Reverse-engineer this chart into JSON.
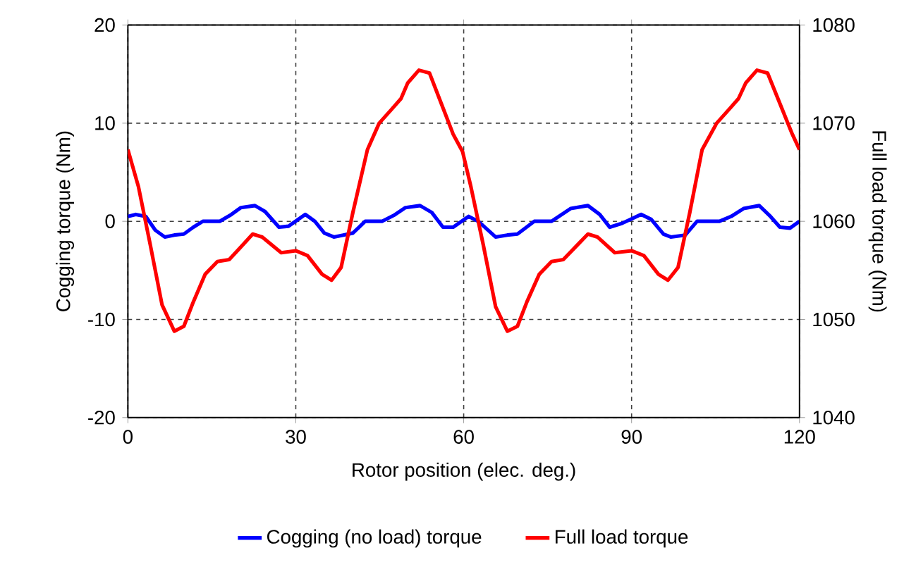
{
  "chart_data": {
    "type": "line",
    "xlabel": "Rotor position (elec. deg.)",
    "ylabel": "Cogging torque  (Nm)",
    "y2label": "Full load torque  (Nm)",
    "xlim": [
      0,
      120
    ],
    "xticks": [
      0,
      30,
      60,
      90,
      120
    ],
    "ylim": [
      -20,
      20
    ],
    "yticks": [
      -20,
      -10,
      0,
      10,
      20
    ],
    "y2lim": [
      1040,
      1080
    ],
    "y2ticks": [
      1040,
      1050,
      1060,
      1070,
      1080
    ],
    "grid": true,
    "legend": "bottom",
    "series": [
      {
        "name": "Cogging (no load) torque",
        "color": "#0000ff",
        "x": [
          0,
          1.4,
          3.2,
          4.9,
          6.6,
          8.3,
          10,
          11.7,
          13.4,
          16.4,
          18.5,
          20.2,
          22.7,
          24.5,
          27,
          28.7,
          31.7,
          33.4,
          35.1,
          36.8,
          38.5,
          40.2,
          42.4,
          45.4,
          47.5,
          49.6,
          52.2,
          54.3,
          56.3,
          58.1,
          60.9,
          62.6,
          65.7,
          67.8,
          69.6,
          72.6,
          75.7,
          79.1,
          82.2,
          84.3,
          86.1,
          88.3,
          91.7,
          93.5,
          95.7,
          97,
          99.6,
          101.7,
          105.7,
          107.8,
          110,
          112.8,
          114.8,
          116.5,
          118.3,
          120
        ],
        "values": [
          0.5,
          0.7,
          0.5,
          -0.9,
          -1.6,
          -1.4,
          -1.3,
          -0.6,
          0,
          0,
          0.7,
          1.4,
          1.6,
          1.0,
          -0.6,
          -0.5,
          0.7,
          0,
          -1.2,
          -1.6,
          -1.4,
          -1.2,
          0,
          0,
          0.6,
          1.4,
          1.6,
          0.9,
          -0.6,
          -0.6,
          0.5,
          0,
          -1.6,
          -1.4,
          -1.3,
          0,
          0,
          1.3,
          1.6,
          0.7,
          -0.6,
          -0.2,
          0.7,
          0.2,
          -1.3,
          -1.6,
          -1.4,
          0,
          0,
          0.5,
          1.3,
          1.6,
          0.5,
          -0.6,
          -0.7,
          0
        ]
      },
      {
        "name": "Full load torque",
        "color": "#ff0000",
        "axis": "y2",
        "x": [
          0,
          1.9,
          4,
          6.1,
          8.3,
          10,
          11.7,
          13.8,
          16,
          18.1,
          20.2,
          22.3,
          24,
          27.4,
          30,
          32.1,
          34.7,
          36.4,
          38.1,
          40.2,
          42.8,
          44.9,
          47.1,
          48.8,
          50,
          52,
          53.9,
          56,
          58.1,
          59.8,
          61.3,
          63.5,
          65.7,
          67.8,
          69.6,
          71.3,
          73.5,
          75.7,
          77.8,
          80,
          82.2,
          83.9,
          87,
          90,
          92.2,
          94.8,
          96.5,
          98.3,
          100.4,
          102.6,
          105.2,
          107.4,
          109.1,
          110.4,
          112.4,
          114.3,
          116.5,
          118.7,
          120
        ],
        "values": [
          1067.3,
          1063.5,
          1057.6,
          1051.5,
          1048.8,
          1049.3,
          1051.8,
          1054.6,
          1055.9,
          1056.1,
          1057.4,
          1058.7,
          1058.4,
          1056.8,
          1057.0,
          1056.5,
          1054.6,
          1054.0,
          1055.3,
          1060.9,
          1067.3,
          1070.0,
          1071.4,
          1072.5,
          1074.1,
          1075.4,
          1075.1,
          1072.0,
          1068.9,
          1067.1,
          1063.5,
          1057.6,
          1051.3,
          1048.8,
          1049.3,
          1051.8,
          1054.6,
          1055.9,
          1056.1,
          1057.4,
          1058.7,
          1058.4,
          1056.8,
          1057.0,
          1056.5,
          1054.6,
          1054.0,
          1055.3,
          1060.9,
          1067.3,
          1070.0,
          1071.4,
          1072.5,
          1074.1,
          1075.4,
          1075.1,
          1072.0,
          1068.9,
          1067.3
        ]
      }
    ]
  }
}
